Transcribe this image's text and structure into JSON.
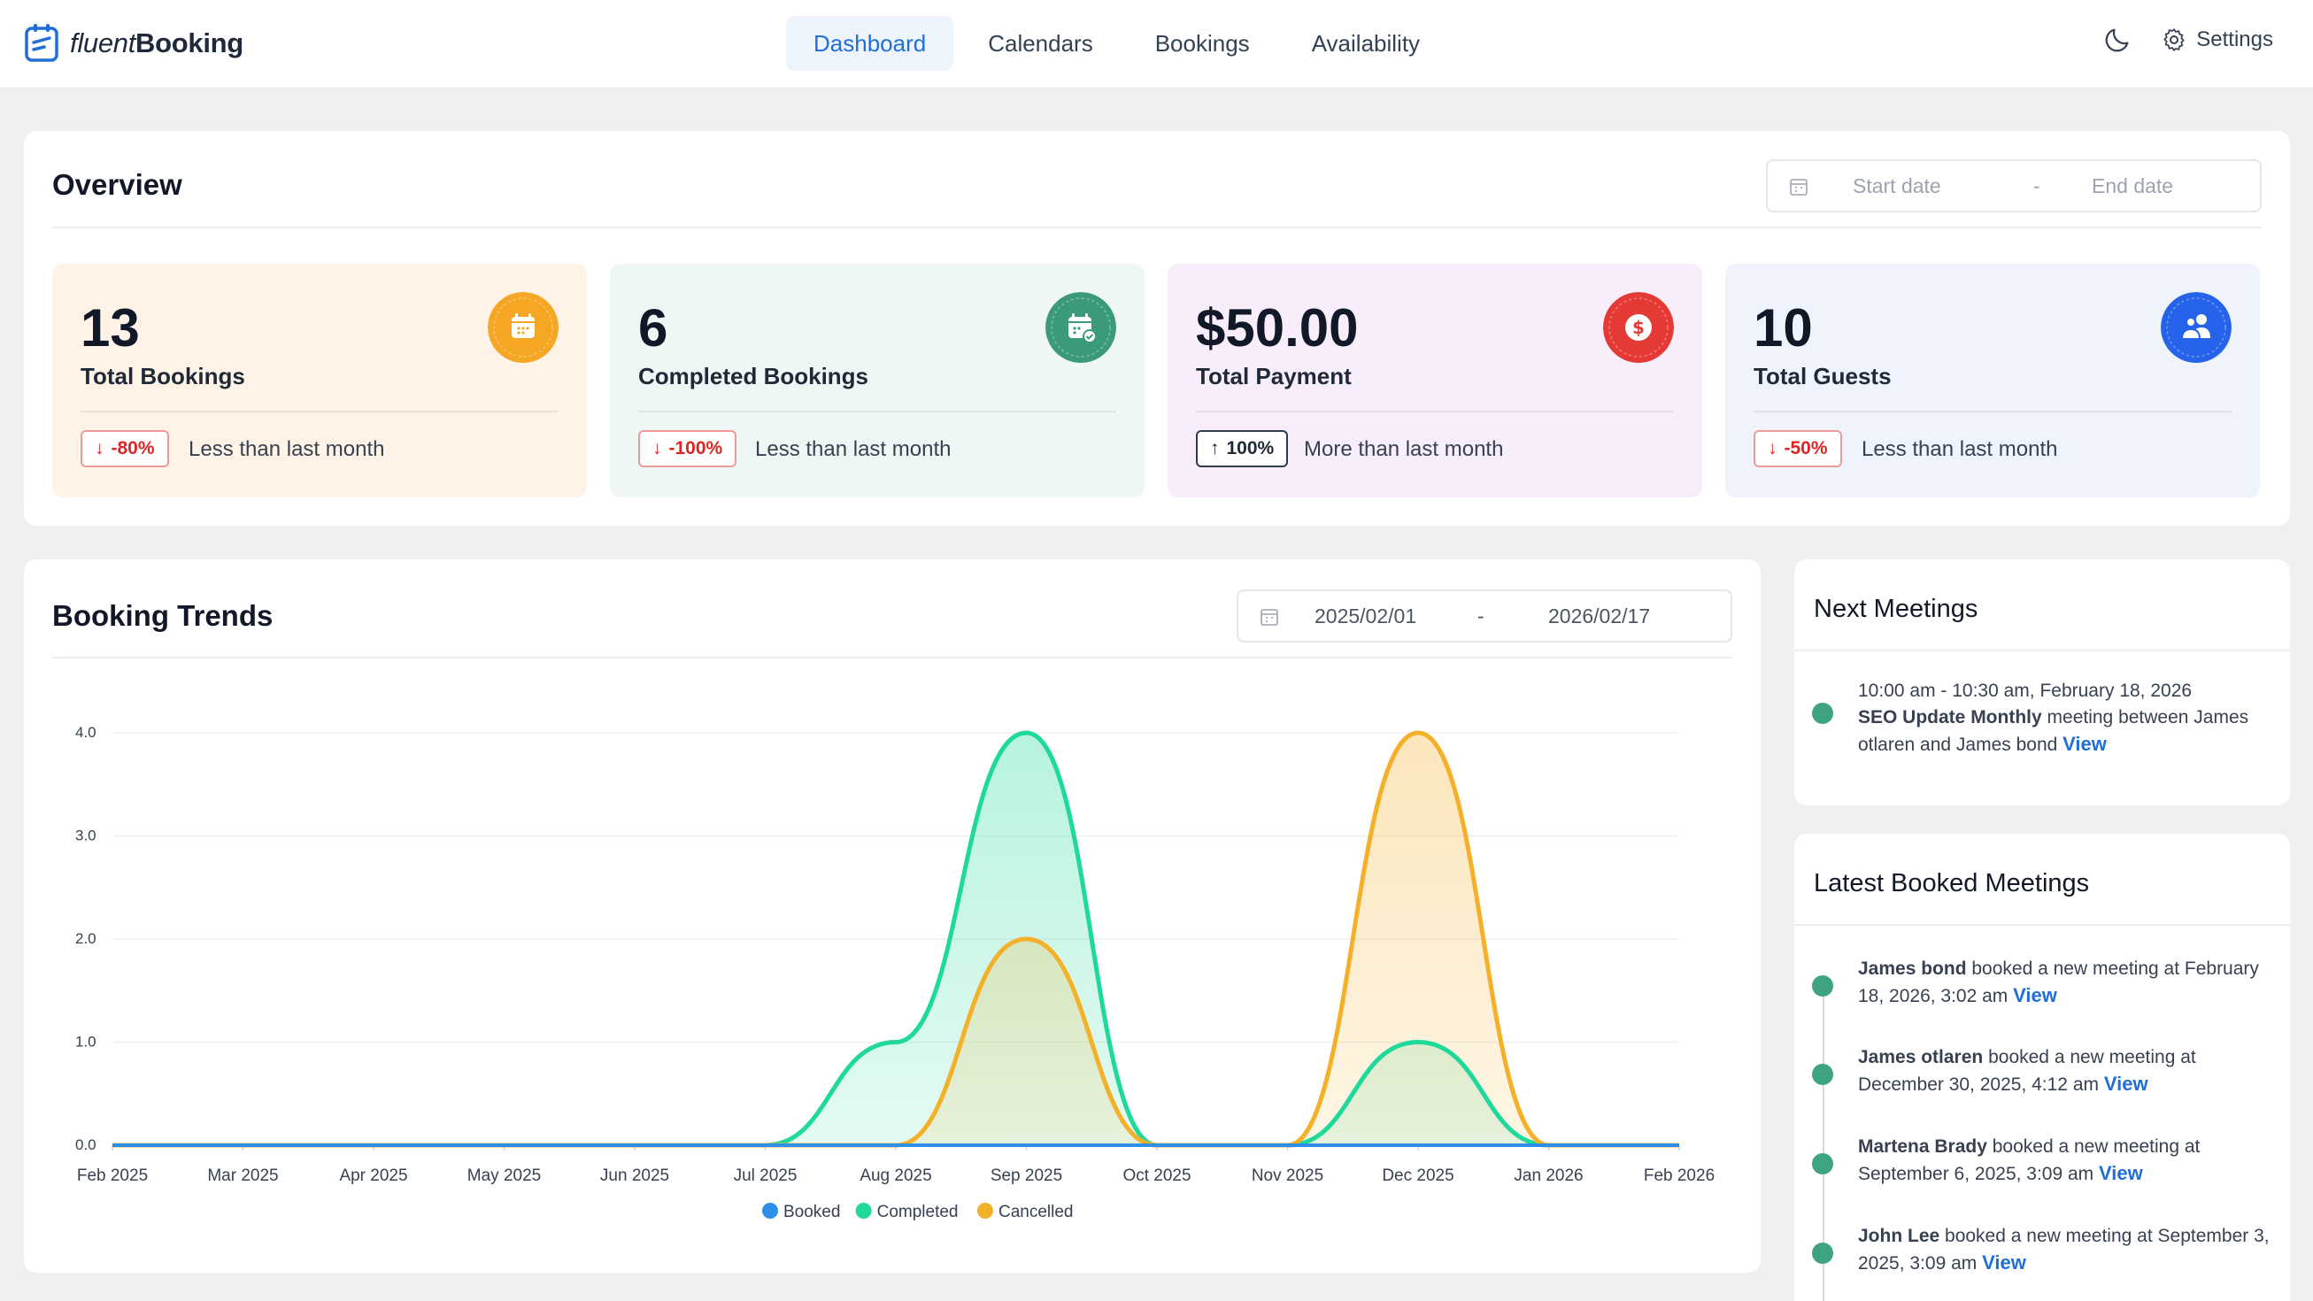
{
  "app": {
    "logo_light": "fluent",
    "logo_bold": "Booking"
  },
  "nav": {
    "items": [
      {
        "label": "Dashboard",
        "active": true
      },
      {
        "label": "Calendars",
        "active": false
      },
      {
        "label": "Bookings",
        "active": false
      },
      {
        "label": "Availability",
        "active": false
      }
    ],
    "settings_label": "Settings"
  },
  "overview": {
    "title": "Overview",
    "start_placeholder": "Start date",
    "separator": "-",
    "end_placeholder": "End date",
    "stats": [
      {
        "value": "13",
        "label": "Total Bookings",
        "change": "-80%",
        "direction": "down",
        "note": "Less than last month",
        "bg": "#fef3e6",
        "icon_color": "#f5a623",
        "icon": "calendar-icon"
      },
      {
        "value": "6",
        "label": "Completed Bookings",
        "change": "-100%",
        "direction": "down",
        "note": "Less than last month",
        "bg": "#eef7f3",
        "icon_color": "#3a9a7a",
        "icon": "calendar-check-icon"
      },
      {
        "value": "$50.00",
        "label": "Total Payment",
        "change": "100%",
        "direction": "up",
        "note": "More than last month",
        "bg": "#f8edfb",
        "icon_color": "#e53935",
        "icon": "dollar-icon"
      },
      {
        "value": "10",
        "label": "Total Guests",
        "change": "-50%",
        "direction": "down",
        "note": "Less than last month",
        "bg": "#eef3fc",
        "icon_color": "#2563eb",
        "icon": "users-icon"
      }
    ]
  },
  "trends": {
    "title": "Booking Trends",
    "start_date": "2025/02/01",
    "separator": "-",
    "end_date": "2026/02/17"
  },
  "chart_data": {
    "type": "area",
    "title": "Booking Trends",
    "x": [
      "Feb 2025",
      "Mar 2025",
      "Apr 2025",
      "May 2025",
      "Jun 2025",
      "Jul 2025",
      "Aug 2025",
      "Sep 2025",
      "Oct 2025",
      "Nov 2025",
      "Dec 2025",
      "Jan 2026",
      "Feb 2026"
    ],
    "y_ticks": [
      "0.0",
      "1.0",
      "2.0",
      "3.0",
      "4.0"
    ],
    "ylim": [
      0,
      4
    ],
    "series": [
      {
        "name": "Booked",
        "color": "#2e8fe8",
        "values": [
          0,
          0,
          0,
          0,
          0,
          0,
          0,
          0,
          0,
          0,
          0,
          0,
          0
        ]
      },
      {
        "name": "Completed",
        "color": "#1ed99a",
        "values": [
          0,
          0,
          0,
          0,
          0,
          0,
          1,
          4,
          0,
          0,
          1,
          0,
          0
        ]
      },
      {
        "name": "Cancelled",
        "color": "#f5b02a",
        "values": [
          0,
          0,
          0,
          0,
          0,
          0,
          0,
          2,
          0,
          0,
          4,
          0,
          0
        ]
      }
    ],
    "legend_position": "bottom",
    "grid": true
  },
  "next_meetings": {
    "title": "Next Meetings",
    "items": [
      {
        "time": "10:00 am - 10:30 am, February 18, 2026",
        "name": "SEO Update Monthly",
        "desc": " meeting between James otlaren and James bond ",
        "link": "View"
      }
    ]
  },
  "latest": {
    "title": "Latest Booked Meetings",
    "items": [
      {
        "name": "James bond",
        "desc": " booked a new meeting at February 18, 2026, 3:02 am ",
        "link": "View"
      },
      {
        "name": "James otlaren",
        "desc": " booked a new meeting at December 30, 2025, 4:12 am ",
        "link": "View"
      },
      {
        "name": "Martena Brady",
        "desc": " booked a new meeting at September 6, 2025, 3:09 am ",
        "link": "View"
      },
      {
        "name": "John Lee",
        "desc": " booked a new meeting at September 3, 2025, 3:09 am ",
        "link": "View"
      }
    ]
  }
}
